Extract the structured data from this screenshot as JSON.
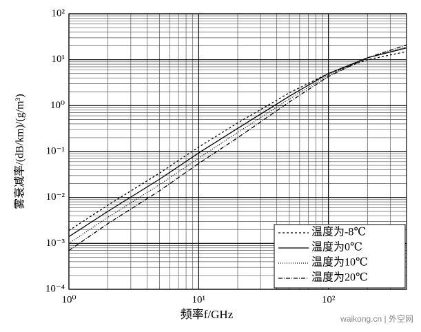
{
  "chart_data": {
    "type": "line",
    "xlabel": "频率f/GHz",
    "ylabel": "雾衰减率/(dB/km)/(g/m³)",
    "xlog": true,
    "ylog": true,
    "grid": true,
    "minor_grid": true,
    "xlim": [
      1,
      400
    ],
    "ylim": [
      0.0001,
      100
    ],
    "xticks": [
      {
        "value": 1,
        "label": "10⁰"
      },
      {
        "value": 10,
        "label": "10¹"
      },
      {
        "value": 100,
        "label": "10²"
      }
    ],
    "yticks": [
      {
        "value": 0.0001,
        "label": "10⁻⁴"
      },
      {
        "value": 0.001,
        "label": "10⁻³"
      },
      {
        "value": 0.01,
        "label": "10⁻²"
      },
      {
        "value": 0.1,
        "label": "10⁻¹"
      },
      {
        "value": 1,
        "label": "10⁰"
      },
      {
        "value": 10,
        "label": "10¹"
      },
      {
        "value": 100,
        "label": "10²"
      }
    ],
    "x": [
      1,
      2,
      5,
      10,
      20,
      50,
      100,
      200,
      400
    ],
    "legend": "lower right",
    "series": [
      {
        "name": "温度为-8℃",
        "color": "#000000",
        "dash": "3,3",
        "values": [
          0.0019,
          0.0068,
          0.034,
          0.125,
          0.42,
          1.9,
          5,
          10,
          15
        ]
      },
      {
        "name": "温度为0℃",
        "color": "#000000",
        "dash": "none",
        "values": [
          0.0014,
          0.005,
          0.025,
          0.093,
          0.32,
          1.6,
          5,
          11,
          18
        ]
      },
      {
        "name": "温度为10℃",
        "color": "#000000",
        "dash": "1,2",
        "values": [
          0.001,
          0.0037,
          0.019,
          0.072,
          0.26,
          1.4,
          4.6,
          11,
          19
        ]
      },
      {
        "name": "温度为20℃",
        "color": "#000000",
        "dash": "6,2,1,2",
        "values": [
          0.0007,
          0.0027,
          0.014,
          0.055,
          0.2,
          1.2,
          4.3,
          11,
          21
        ]
      }
    ],
    "watermark": "waikong.cn | 外空网"
  }
}
